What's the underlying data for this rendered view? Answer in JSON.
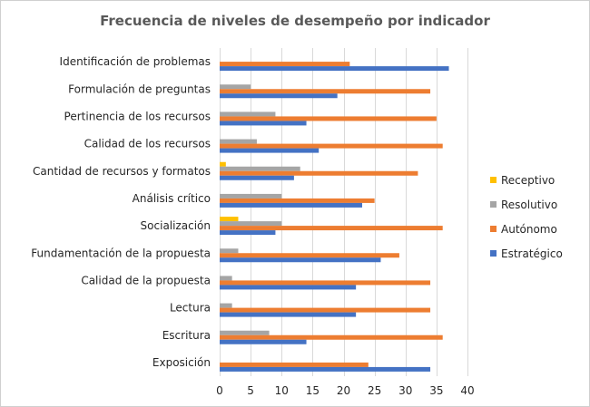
{
  "chart_data": {
    "type": "bar",
    "orientation": "horizontal",
    "title": "Frecuencia de niveles de desempeño por indicador",
    "xlabel": "",
    "ylabel": "",
    "xlim": [
      0,
      40
    ],
    "xticks": [
      0,
      5,
      10,
      15,
      20,
      25,
      30,
      35,
      40
    ],
    "grid": true,
    "legend_position": "right",
    "categories": [
      "Identificación de problemas",
      "Formulación de preguntas",
      "Pertinencia de los recursos",
      "Calidad de los recursos",
      "Cantidad de recursos y formatos",
      "Análisis crítico",
      "Socialización",
      "Fundamentación de la propuesta",
      "Calidad de la propuesta",
      "Lectura",
      "Escritura",
      "Exposición"
    ],
    "series": [
      {
        "name": "Receptivo",
        "color": "#ffc000",
        "values": [
          0,
          0,
          0,
          0,
          1,
          0,
          3,
          0,
          0,
          0,
          0,
          0
        ]
      },
      {
        "name": "Resolutivo",
        "color": "#a5a5a5",
        "values": [
          0,
          5,
          9,
          6,
          13,
          10,
          10,
          3,
          2,
          2,
          8,
          0
        ]
      },
      {
        "name": "Autónomo",
        "color": "#ed7d31",
        "values": [
          21,
          34,
          35,
          36,
          32,
          25,
          36,
          29,
          34,
          34,
          36,
          24
        ]
      },
      {
        "name": "Estratégico",
        "color": "#4472c4",
        "values": [
          37,
          19,
          14,
          16,
          12,
          23,
          9,
          26,
          22,
          22,
          14,
          34
        ]
      }
    ]
  }
}
